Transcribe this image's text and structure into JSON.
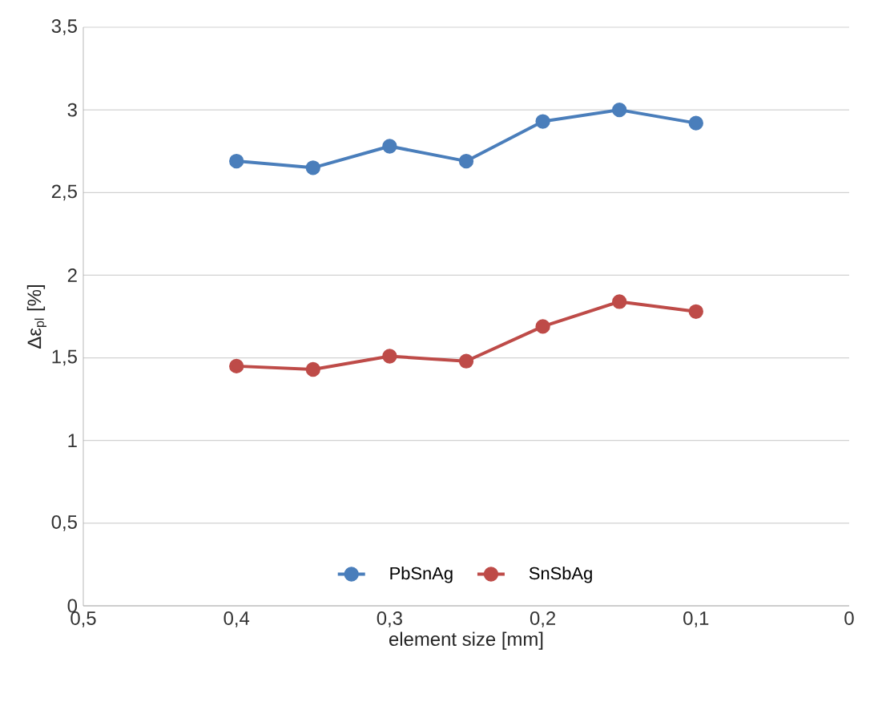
{
  "chart_data": {
    "type": "line",
    "xlabel": "element size [mm]",
    "ylabel": "Δε$_{pl}$ [%]",
    "x": [
      0.4,
      0.35,
      0.3,
      0.25,
      0.2,
      0.15,
      0.1
    ],
    "series": [
      {
        "name": "PbSnAg",
        "color": "#4a7ebb",
        "values": [
          2.69,
          2.65,
          2.78,
          2.69,
          2.93,
          3.0,
          2.92
        ]
      },
      {
        "name": "SnSbAg",
        "color": "#be4b48",
        "values": [
          1.45,
          1.43,
          1.51,
          1.48,
          1.69,
          1.84,
          1.78
        ]
      }
    ],
    "xlim": [
      0.5,
      0
    ],
    "xticks": [
      {
        "value": 0.5,
        "label": "0,5"
      },
      {
        "value": 0.4,
        "label": "0,4"
      },
      {
        "value": 0.3,
        "label": "0,3"
      },
      {
        "value": 0.2,
        "label": "0,2"
      },
      {
        "value": 0.1,
        "label": "0,1"
      },
      0
    ],
    "ylim": [
      0,
      3.5
    ],
    "yticks": [
      0,
      {
        "value": 0.5,
        "label": "0,5"
      },
      1,
      {
        "value": 1.5,
        "label": "1,5"
      },
      2,
      {
        "value": 2.5,
        "label": "2,5"
      },
      3,
      {
        "value": 3.5,
        "label": "3,5"
      }
    ],
    "grid": "y",
    "legend": "bottom",
    "marker": "circle",
    "line_style": "solid"
  }
}
